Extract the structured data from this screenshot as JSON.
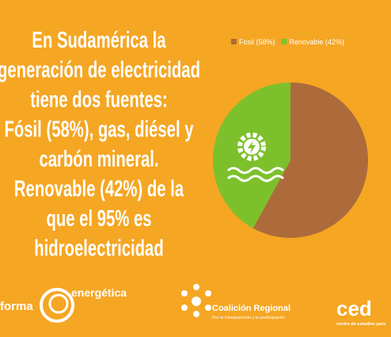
{
  "headline": [
    "En Sudamérica la",
    "generación de electricidad",
    "tiene dos fuentes:",
    "Fósil (58%), gas, diésel y",
    "carbón mineral.",
    "Renovable (42%) de la",
    "que el 95% es",
    "hidroelectricidad"
  ],
  "chart_data": {
    "type": "pie",
    "categories": [
      "Fósil (58%)",
      "Renovable (42%)"
    ],
    "values": [
      58,
      42
    ],
    "colors": [
      "#ad6b3c",
      "#7cc12b"
    ],
    "legend": "top"
  },
  "logos": {
    "reforma": [
      "forma",
      "energética"
    ],
    "coalicion": [
      "Coalición Regional",
      "Por la transparencia y la participación"
    ],
    "cedla": [
      "ced",
      "centro de estudios para"
    ]
  }
}
